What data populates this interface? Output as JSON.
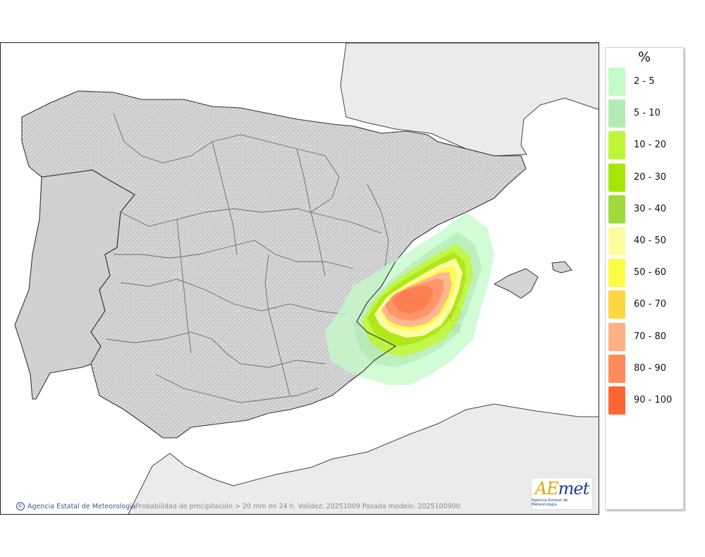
{
  "map": {
    "credit": "Agencia Estatal de Meteorología",
    "caption": "Probabilidad de precipitación > 20 mm en 24 h. Validez: 20251009 Pasada modelo: 2025100900",
    "logo": {
      "brand_a": "AE",
      "brand_b": "met",
      "subtitle": "Agencia Estatal de Meteorología"
    },
    "colors": {
      "land": "#d3d3d3",
      "sea": "#ffffff",
      "foreign_land": "#ebebeb",
      "border": "#333333"
    }
  },
  "legend": {
    "title": "%",
    "items": [
      {
        "label": "2 - 5",
        "color": "#c3fcc8"
      },
      {
        "label": "5 - 10",
        "color": "#b2ecb4"
      },
      {
        "label": "10 - 20",
        "color": "#bdf537"
      },
      {
        "label": "20 - 30",
        "color": "#a8e500"
      },
      {
        "label": "30 - 40",
        "color": "#a0d93a"
      },
      {
        "label": "40 - 50",
        "color": "#fdfd9e"
      },
      {
        "label": "50 - 60",
        "color": "#fcfc42"
      },
      {
        "label": "60 - 70",
        "color": "#fdd641"
      },
      {
        "label": "70 - 80",
        "color": "#ffb084"
      },
      {
        "label": "80 - 90",
        "color": "#ff8c5a"
      },
      {
        "label": "90 - 100",
        "color": "#ff6533"
      }
    ]
  }
}
